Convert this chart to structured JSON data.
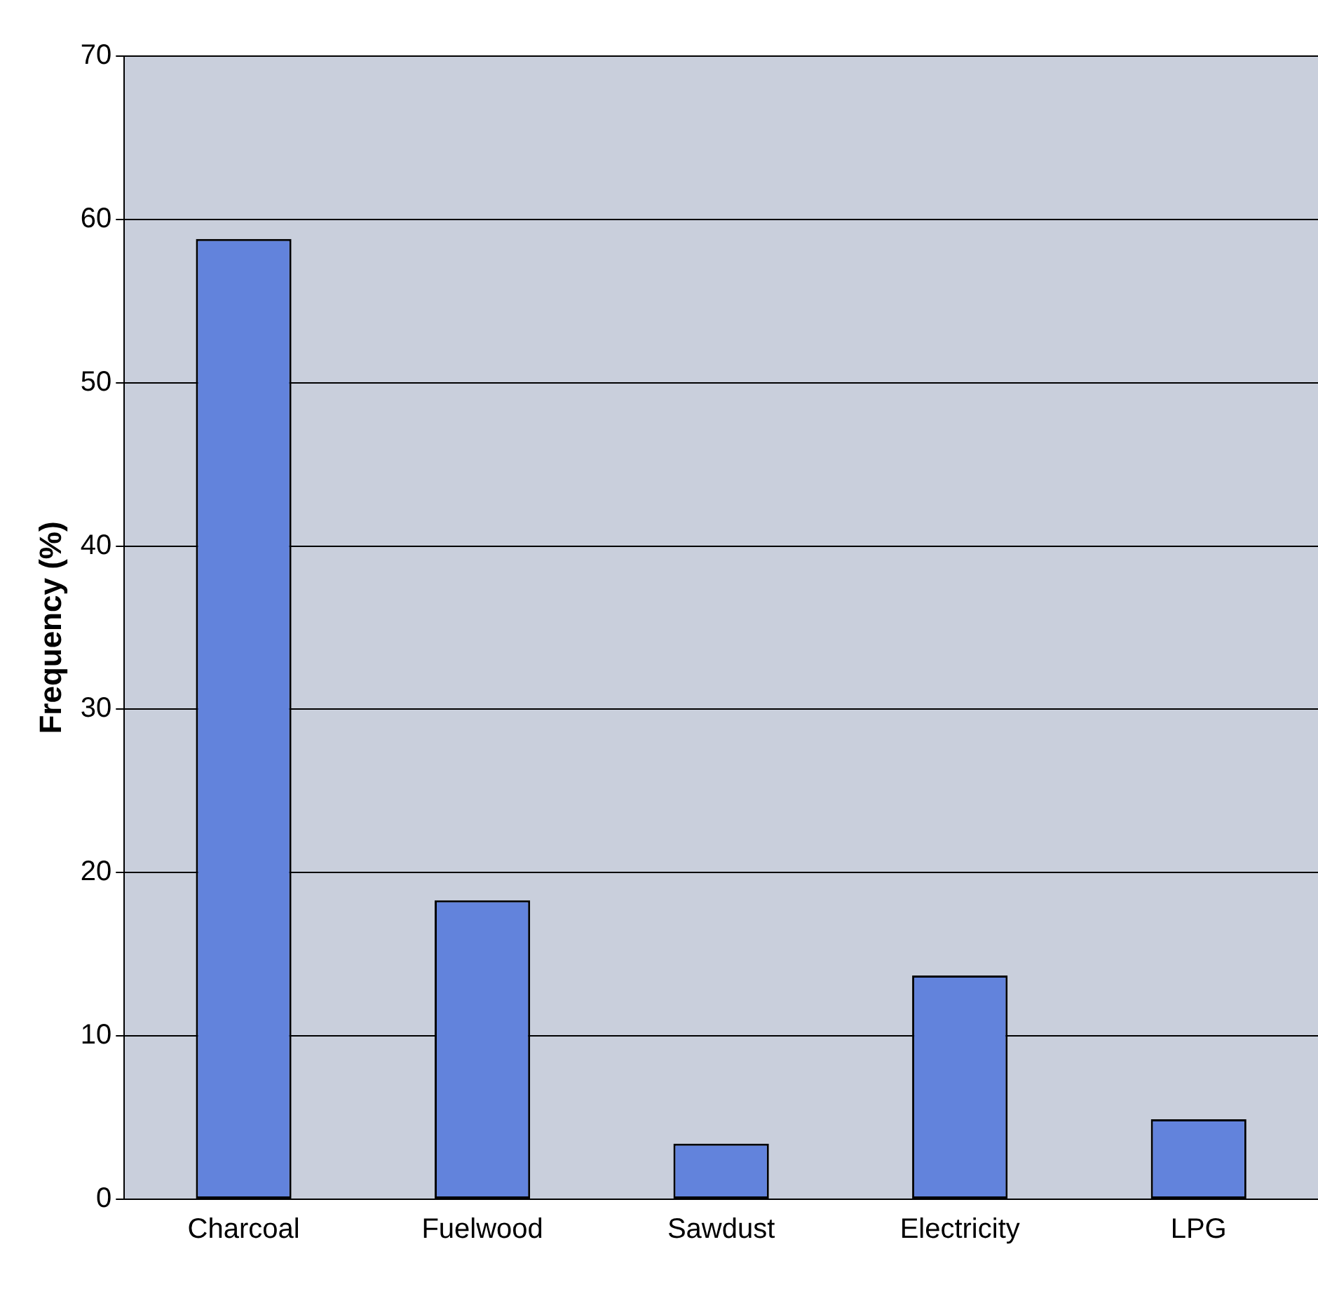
{
  "chart_data": {
    "type": "bar",
    "ylabel": "Frequency (%)",
    "categories": [
      "Charcoal",
      "Fuelwood",
      "Sawdust",
      "Electricity",
      "LPG"
    ],
    "values": [
      58.8,
      18.3,
      3.4,
      13.7,
      4.9
    ],
    "color": "#6283dc",
    "ylim": [
      0,
      70
    ],
    "yticks": [
      0,
      10,
      20,
      30,
      40,
      50,
      60,
      70
    ],
    "grid": "y"
  }
}
